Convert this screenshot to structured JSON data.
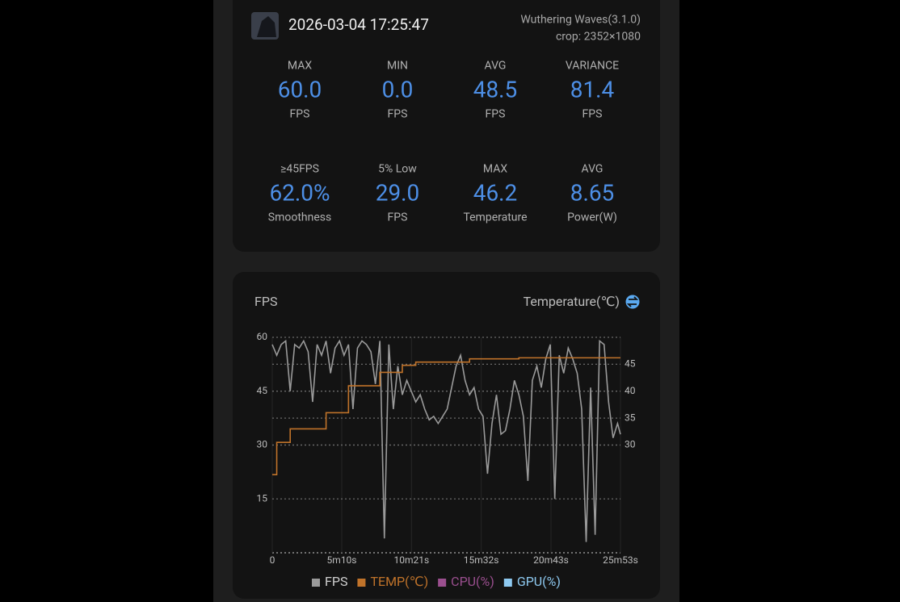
{
  "header": {
    "date": "2026-03-04 17:25:47",
    "app": "Wuthering Waves(3.1.0)",
    "crop": "crop: 2352×1080"
  },
  "stats": [
    {
      "label": "MAX",
      "value": "60.0",
      "unit": "FPS"
    },
    {
      "label": "MIN",
      "value": "0.0",
      "unit": "FPS"
    },
    {
      "label": "AVG",
      "value": "48.5",
      "unit": "FPS"
    },
    {
      "label": "VARIANCE",
      "value": "81.4",
      "unit": "FPS"
    },
    {
      "label": "≥45FPS",
      "value": "62.0%",
      "unit": "Smoothness"
    },
    {
      "label": "5% Low",
      "value": "29.0",
      "unit": "FPS"
    },
    {
      "label": "MAX",
      "value": "46.2",
      "unit": "Temperature"
    },
    {
      "label": "AVG",
      "value": "8.65",
      "unit": "Power(W)"
    }
  ],
  "chart_data": {
    "type": "line",
    "y_label": "FPS",
    "y2_label": "Temperature(℃)",
    "x": [
      0,
      20,
      40,
      60,
      80,
      100,
      120,
      140,
      160,
      180,
      200,
      220,
      240,
      260,
      280,
      300,
      320,
      340,
      360,
      380,
      400,
      420,
      440,
      460,
      480,
      500,
      520,
      540,
      560,
      580,
      600,
      620,
      640,
      660,
      680,
      700,
      720,
      740,
      760,
      780,
      800,
      820,
      840,
      860,
      880,
      900,
      920,
      940,
      960,
      980,
      1000,
      1020,
      1040,
      1060,
      1080,
      1100,
      1120,
      1140,
      1160,
      1180,
      1200,
      1220,
      1240,
      1260,
      1280,
      1300,
      1320,
      1340,
      1360,
      1380,
      1400,
      1420,
      1440,
      1460,
      1480,
      1500,
      1520,
      1540,
      1553
    ],
    "series": [
      {
        "name": "FPS",
        "color": "#9a9a9a",
        "values": [
          58,
          55,
          58,
          59,
          45,
          58,
          57,
          59,
          56,
          42,
          58,
          55,
          59,
          50,
          57,
          59,
          55,
          58,
          40,
          57,
          59,
          58,
          56,
          47,
          59,
          4,
          58,
          40,
          52,
          44,
          48,
          45,
          42,
          44,
          40,
          37,
          38,
          36,
          38,
          40,
          46,
          52,
          55,
          48,
          44,
          46,
          40,
          38,
          22,
          36,
          44,
          33,
          34,
          40,
          48,
          44,
          38,
          20,
          48,
          52,
          46,
          54,
          58,
          15,
          55,
          50,
          57,
          54,
          50,
          40,
          3,
          46,
          5,
          59,
          58,
          42,
          32,
          36,
          33
        ]
      },
      {
        "name": "TEMP(℃)",
        "color": "#c0732a",
        "axis": "y2",
        "step": true,
        "values": [
          24.5,
          30.5,
          30.5,
          30.5,
          33,
          33,
          33,
          33,
          33,
          33,
          33,
          33,
          36,
          36,
          36,
          36,
          36,
          41,
          41,
          41,
          41,
          41,
          41,
          41,
          43.5,
          43.5,
          43.5,
          43.5,
          43.5,
          44.8,
          44.8,
          44.8,
          45.4,
          45.4,
          45.4,
          45.4,
          45.4,
          45.4,
          45.4,
          45.4,
          45.4,
          45.4,
          45.4,
          45.4,
          46,
          46,
          46,
          46,
          46,
          46,
          46,
          46,
          46,
          46,
          46,
          46.2,
          46.2,
          46.2,
          46.2,
          46.2,
          46.2,
          46.2,
          46.2,
          46.2,
          46.2,
          46.2,
          46.2,
          46.2,
          46.2,
          46.2,
          46.2,
          46.2,
          46.2,
          46.2,
          46.2,
          46.2,
          46.2,
          46.2,
          46.2
        ]
      }
    ],
    "hidden_series": [
      {
        "name": "CPU(%)",
        "color": "#9b4f8f"
      },
      {
        "name": "GPU(%)",
        "color": "#8ec9f0"
      }
    ],
    "xlim": [
      0,
      1553
    ],
    "xticks": [
      0,
      {
        "value": 310,
        "label": "5m10s"
      },
      {
        "value": 621,
        "label": "10m21s"
      },
      {
        "value": 932,
        "label": "15m32s"
      },
      {
        "value": 1243,
        "label": "20m43s"
      },
      {
        "value": 1553,
        "label": "25m53s"
      }
    ],
    "ylim": [
      0,
      60
    ],
    "yticks": [
      15,
      30,
      45,
      60
    ],
    "y2lim": [
      10,
      50
    ],
    "y2ticks": [
      30,
      35,
      40,
      45
    ],
    "grid": true
  }
}
